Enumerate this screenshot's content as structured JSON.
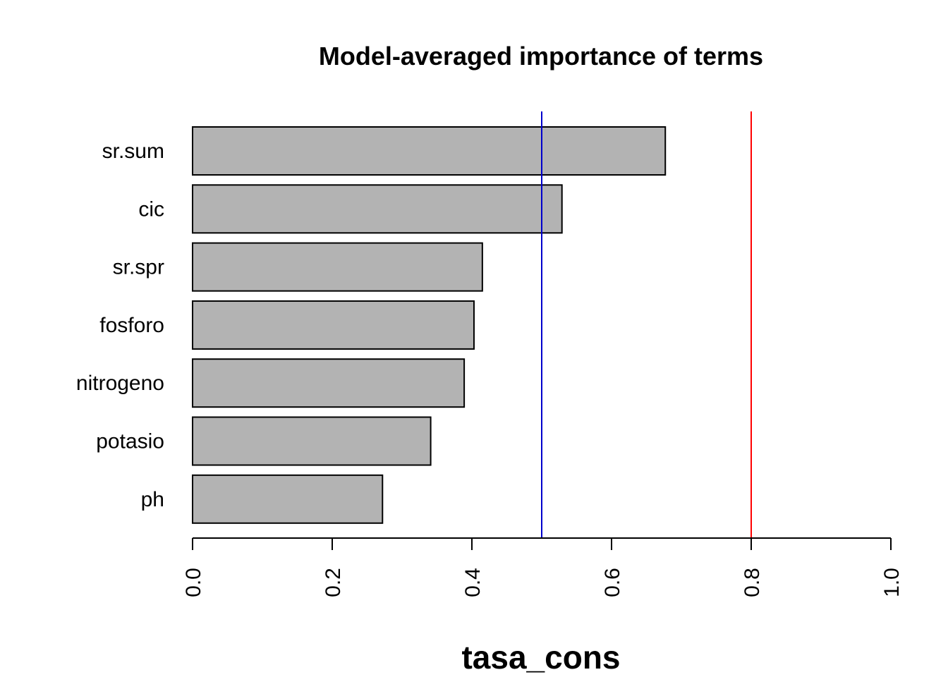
{
  "chart_data": {
    "type": "bar",
    "orientation": "horizontal",
    "title": "Model-averaged importance of terms",
    "xlabel": "tasa_cons",
    "ylabel": "",
    "categories": [
      "sr.sum",
      "cic",
      "sr.spr",
      "fosforo",
      "nitrogeno",
      "potasio",
      "ph"
    ],
    "values": [
      0.677,
      0.529,
      0.415,
      0.403,
      0.389,
      0.341,
      0.272
    ],
    "xlim": [
      0,
      1
    ],
    "xticks": [
      0.0,
      0.2,
      0.4,
      0.6,
      0.8,
      1.0
    ],
    "xtick_labels": [
      "0.0",
      "0.2",
      "0.4",
      "0.6",
      "0.8",
      "1.0"
    ],
    "reference_lines": [
      {
        "value": 0.5,
        "color": "#0000cc"
      },
      {
        "value": 0.8,
        "color": "#ff0000"
      }
    ],
    "bar_fill": "#b3b3b3",
    "bar_stroke": "#000000",
    "grid": false,
    "legend": "none"
  }
}
